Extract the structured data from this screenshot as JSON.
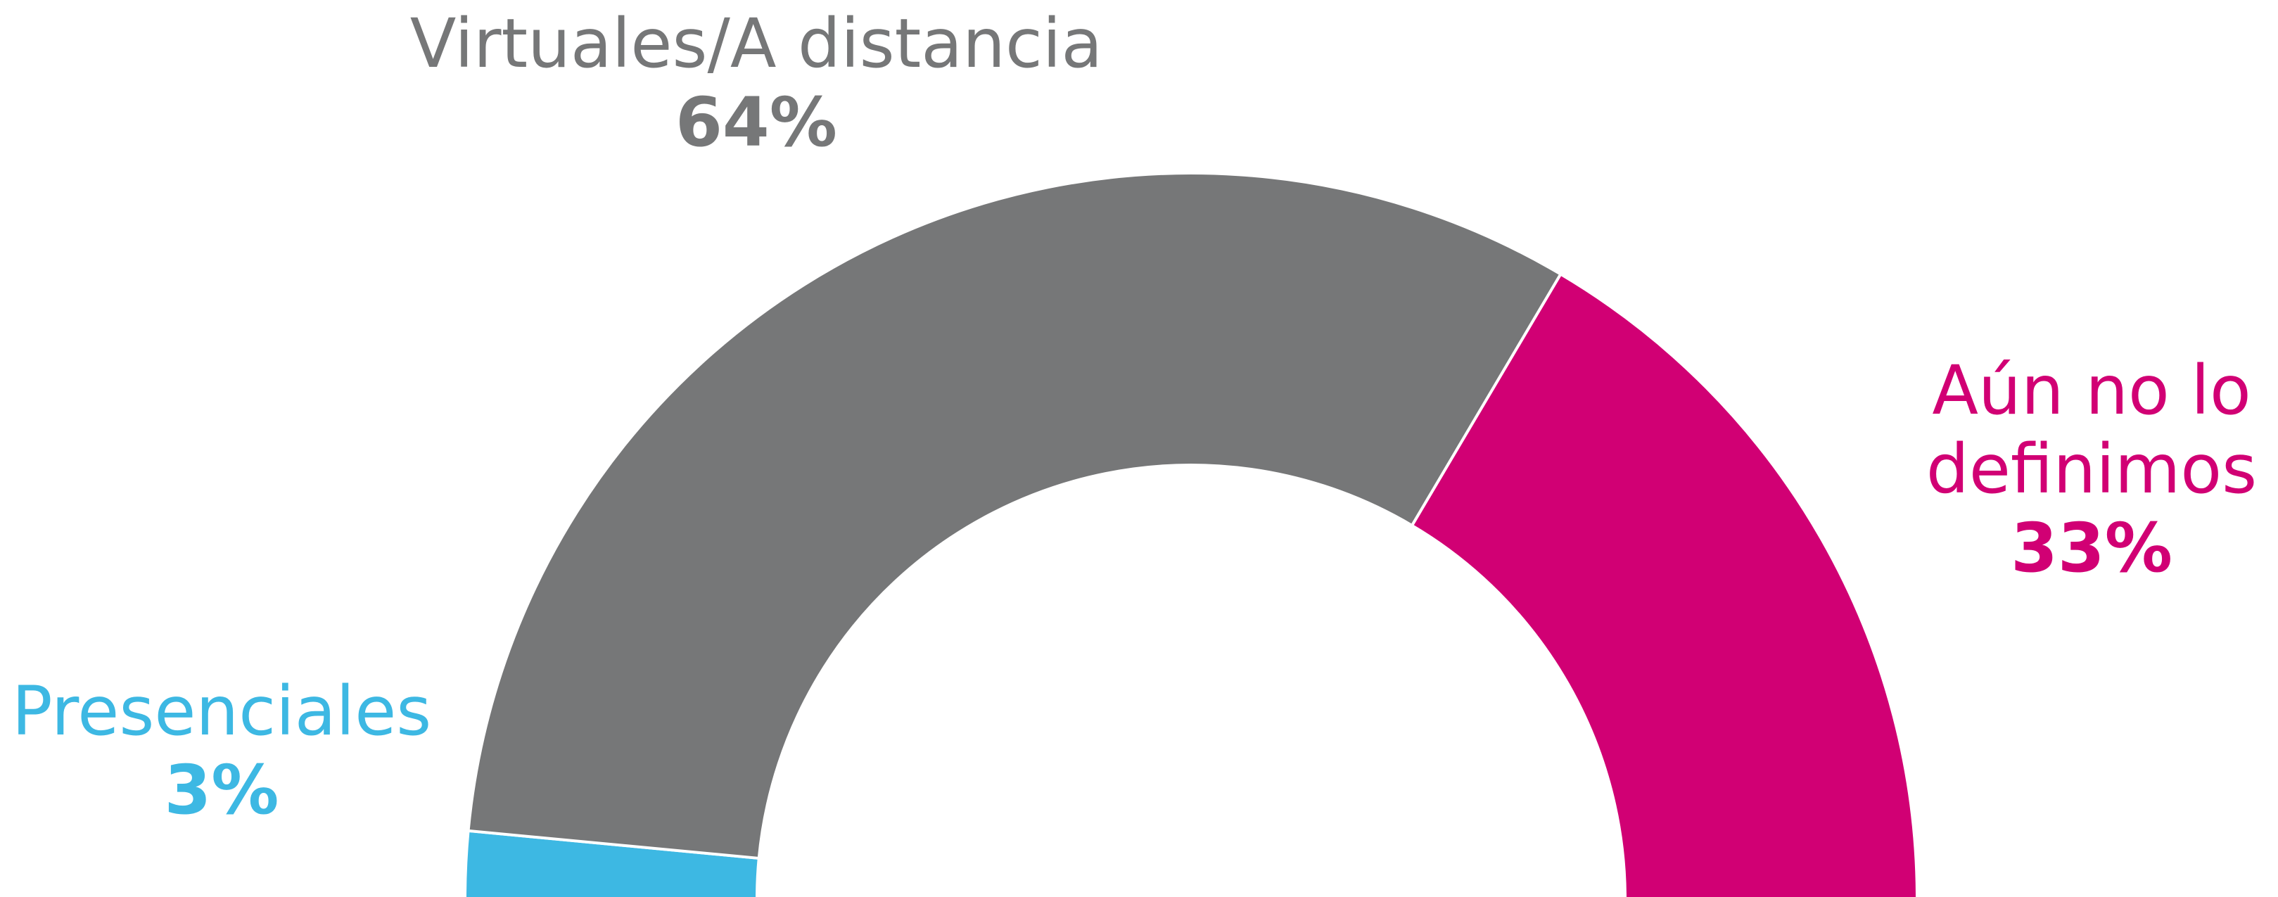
{
  "chart_data": {
    "type": "pie",
    "shape": "half-donut",
    "categories": [
      "Presenciales",
      "Virtuales/A distancia",
      "Aún no lo definimos"
    ],
    "values": [
      3,
      64,
      33
    ],
    "value_labels": [
      "3%",
      "64%",
      "33%"
    ],
    "colors": [
      "#3db8e3",
      "#767778",
      "#d10074"
    ]
  }
}
